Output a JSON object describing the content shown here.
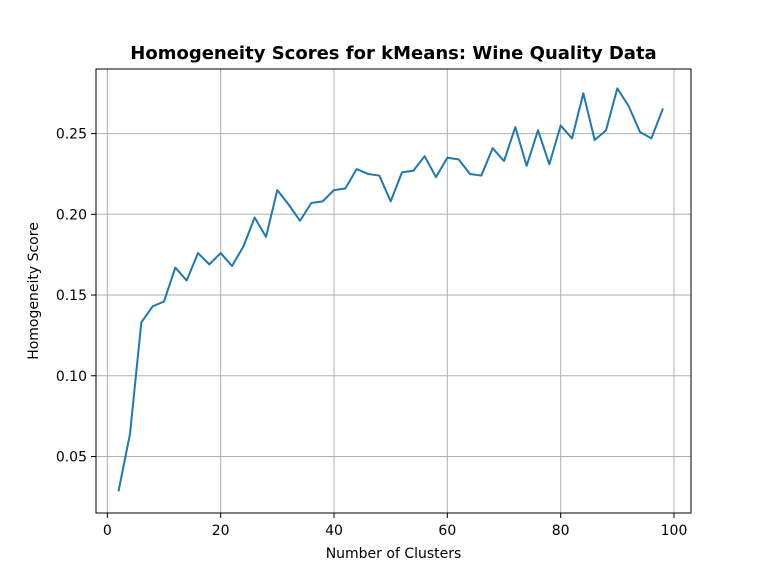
{
  "chart_data": {
    "type": "line",
    "title": "Homogeneity Scores for kMeans: Wine Quality Data",
    "xlabel": "Number of Clusters",
    "ylabel": "Homogeneity Score",
    "xlim": [
      -2,
      103
    ],
    "ylim": [
      0.015,
      0.29
    ],
    "xticks": [
      0,
      20,
      40,
      60,
      80,
      100
    ],
    "yticks": [
      0.05,
      0.1,
      0.15,
      0.2,
      0.25
    ],
    "xtick_labels": [
      "0",
      "20",
      "40",
      "60",
      "80",
      "100"
    ],
    "ytick_labels": [
      "0.05",
      "0.10",
      "0.15",
      "0.20",
      "0.25"
    ],
    "grid": true,
    "series": [
      {
        "color": "#1f77b4",
        "x": [
          2,
          4,
          6,
          8,
          10,
          12,
          14,
          16,
          18,
          20,
          22,
          24,
          26,
          28,
          30,
          32,
          34,
          36,
          38,
          40,
          42,
          44,
          46,
          48,
          50,
          52,
          54,
          56,
          58,
          60,
          62,
          64,
          66,
          68,
          70,
          72,
          74,
          76,
          78,
          80,
          82,
          84,
          86,
          88,
          90,
          92,
          94,
          96,
          98
        ],
        "y": [
          0.029,
          0.064,
          0.133,
          0.143,
          0.146,
          0.167,
          0.159,
          0.176,
          0.169,
          0.176,
          0.168,
          0.18,
          0.198,
          0.186,
          0.215,
          0.206,
          0.196,
          0.207,
          0.208,
          0.215,
          0.216,
          0.228,
          0.225,
          0.224,
          0.208,
          0.226,
          0.227,
          0.236,
          0.223,
          0.235,
          0.234,
          0.225,
          0.224,
          0.241,
          0.233,
          0.254,
          0.23,
          0.252,
          0.231,
          0.255,
          0.247,
          0.275,
          0.246,
          0.252,
          0.278,
          0.267,
          0.251,
          0.247,
          0.265
        ]
      }
    ]
  }
}
